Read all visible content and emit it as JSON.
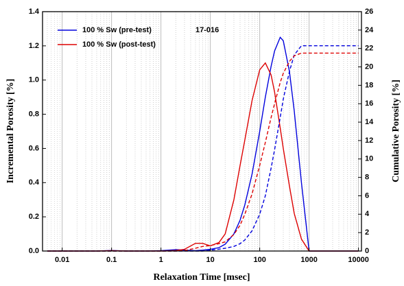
{
  "chart_data": {
    "type": "line",
    "xlabel": "Relaxation Time [msec]",
    "ylabel": "Incremental Porosity [%]",
    "y2label": "Cumulative Porosity [%]",
    "annotation": "17-016",
    "log_x": true,
    "grid": true,
    "legend": "upper left",
    "x": [
      0.005,
      0.01,
      0.02,
      0.05,
      0.1,
      0.2,
      0.5,
      1,
      2,
      3,
      5,
      7,
      10,
      15,
      20,
      30,
      40,
      50,
      70,
      100,
      130,
      170,
      200,
      260,
      300,
      400,
      500,
      700,
      1000,
      2000,
      5000,
      10000
    ],
    "series": [
      {
        "name": "100 % Sw (pre-test)",
        "color": "#0000dd",
        "values": [
          0,
          0,
          0,
          0,
          0.003,
          0,
          0,
          0.002,
          0.008,
          0.005,
          0.002,
          0.005,
          0.01,
          0.02,
          0.04,
          0.1,
          0.18,
          0.27,
          0.45,
          0.7,
          0.9,
          1.08,
          1.17,
          1.25,
          1.23,
          1.05,
          0.82,
          0.4,
          0,
          0,
          0,
          0
        ]
      },
      {
        "name": "100 % Sw (post-test)",
        "color": "#dd0000",
        "values": [
          0,
          0,
          0,
          0,
          0.002,
          0,
          0,
          0,
          0.003,
          0.01,
          0.045,
          0.045,
          0.03,
          0.05,
          0.1,
          0.3,
          0.5,
          0.65,
          0.88,
          1.06,
          1.1,
          1.03,
          0.93,
          0.72,
          0.6,
          0.38,
          0.22,
          0.07,
          0,
          0,
          0,
          0
        ]
      },
      {
        "color": "#0000dd",
        "dashed": true,
        "axis": "y2",
        "values": [
          0,
          0,
          0,
          0,
          0,
          0,
          0,
          0,
          0,
          0,
          0,
          0,
          0.1,
          0.2,
          0.3,
          0.5,
          0.8,
          1.2,
          2.2,
          4,
          6,
          9,
          11,
          14.5,
          16.5,
          19.5,
          21.3,
          22.3,
          22.3,
          22.3,
          22.3,
          22.3
        ]
      },
      {
        "color": "#dd0000",
        "dashed": true,
        "axis": "y2",
        "values": [
          0,
          0,
          0,
          0,
          0,
          0,
          0,
          0,
          0,
          0.05,
          0.3,
          0.5,
          0.6,
          0.8,
          1.0,
          1.8,
          2.8,
          4,
          6.2,
          9.3,
          11.8,
          14.5,
          16,
          18.3,
          19.3,
          20.6,
          21.2,
          21.5,
          21.5,
          21.5,
          21.5,
          21.5
        ]
      }
    ],
    "xlim": [
      0.004,
      11500
    ],
    "xticks": [
      0.01,
      0.1,
      1,
      10,
      100,
      1000,
      10000
    ],
    "ylim": [
      0,
      1.4
    ],
    "yticks": [
      {
        "value": 0,
        "label": "0.0"
      },
      0.2,
      0.4,
      0.6,
      0.8,
      {
        "value": 1,
        "label": "1.0"
      },
      1.2,
      1.4
    ],
    "y2lim": [
      0,
      26
    ],
    "y2ticks": [
      0,
      2,
      4,
      6,
      8,
      10,
      12,
      14,
      16,
      18,
      20,
      22,
      24,
      26
    ]
  }
}
